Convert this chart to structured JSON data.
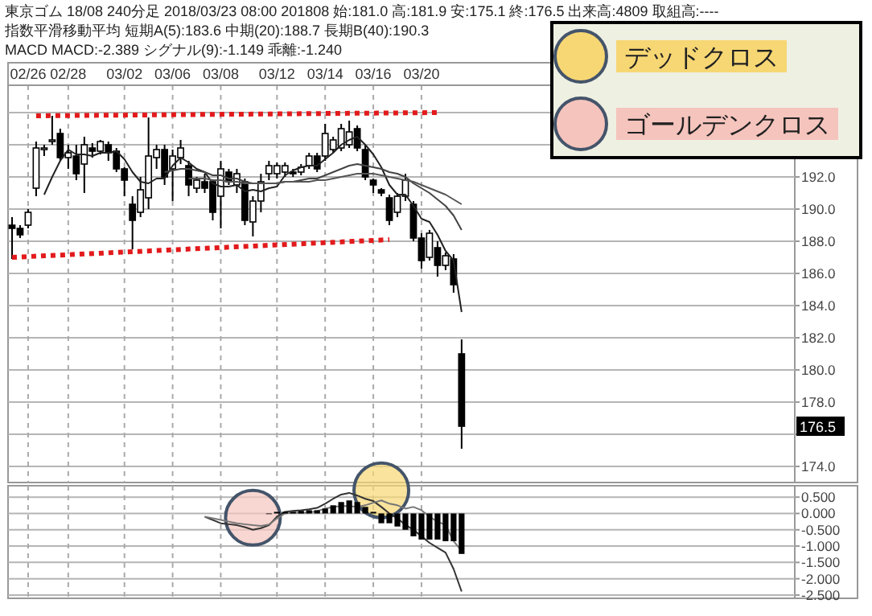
{
  "chart_data": [
    {
      "type": "candlestick",
      "title": "東京ゴム 18/08 240分足 2018/03/23 08:00 201808 始:181.0 高:181.9 安:175.1 終:176.5 出来高:4809 取組高:----",
      "subtitle": "指数平滑移動平均 短期A(5):183.6 中期(20):188.7 長期B(40):190.3",
      "categories": [
        null,
        null,
        "02/26",
        null,
        null,
        null,
        null,
        "02/28",
        null,
        null,
        null,
        null,
        null,
        null,
        "03/02",
        null,
        null,
        null,
        null,
        null,
        "03/06",
        null,
        null,
        null,
        null,
        null,
        "03/08",
        null,
        null,
        null,
        null,
        null,
        null,
        "03/12",
        null,
        null,
        null,
        null,
        null,
        "03/14",
        null,
        null,
        null,
        null,
        null,
        "03/16",
        null,
        null,
        null,
        null,
        null,
        "03/20",
        null,
        null,
        null,
        null,
        null,
        null,
        null,
        null,
        null,
        null,
        null,
        null,
        null,
        null,
        null,
        null,
        null,
        null,
        null,
        null,
        null,
        null,
        null,
        null,
        null,
        null,
        null,
        null,
        null,
        null,
        null,
        null,
        null,
        null,
        null,
        null,
        null,
        null,
        null,
        null,
        null,
        null,
        null,
        null,
        null,
        null
      ],
      "ohlc": [
        [
          189.0,
          189.5,
          186.9,
          188.8
        ],
        [
          188.8,
          189.0,
          188.2,
          188.4
        ],
        [
          189.0,
          190.0,
          188.8,
          189.8
        ],
        [
          191.3,
          194.2,
          190.8,
          193.8
        ],
        [
          193.7,
          194.0,
          193.3,
          193.8
        ],
        [
          194.3,
          195.8,
          194.0,
          194.3
        ],
        [
          194.7,
          195.0,
          193.0,
          193.2
        ],
        [
          193.2,
          194.0,
          192.5,
          193.5
        ],
        [
          193.3,
          194.0,
          191.8,
          192.2
        ],
        [
          192.8,
          194.5,
          191.0,
          194.0
        ],
        [
          193.8,
          194.1,
          193.2,
          193.6
        ],
        [
          193.6,
          194.3,
          193.4,
          194.2
        ],
        [
          194.0,
          194.2,
          193.0,
          193.5
        ],
        [
          193.6,
          193.8,
          192.3,
          192.5
        ],
        [
          192.5,
          192.6,
          190.8,
          191.8
        ],
        [
          190.3,
          190.8,
          187.5,
          189.3
        ],
        [
          189.8,
          192.0,
          189.5,
          191.2
        ],
        [
          190.7,
          195.7,
          190.0,
          193.3
        ],
        [
          193.2,
          194.0,
          192.5,
          193.7
        ],
        [
          193.7,
          194.0,
          191.5,
          192.0
        ],
        [
          192.5,
          193.7,
          190.5,
          193.3
        ],
        [
          193.2,
          194.3,
          192.8,
          193.8
        ],
        [
          192.7,
          193.0,
          190.8,
          191.5
        ],
        [
          191.3,
          192.0,
          191.0,
          191.8
        ],
        [
          191.7,
          192.2,
          191.0,
          191.3
        ],
        [
          191.7,
          191.8,
          189.3,
          189.8
        ],
        [
          190.8,
          193.0,
          188.8,
          192.5
        ],
        [
          192.3,
          192.5,
          191.5,
          191.7
        ],
        [
          191.5,
          192.5,
          191.0,
          192.2
        ],
        [
          191.7,
          191.9,
          189.0,
          189.3
        ],
        [
          189.2,
          190.8,
          188.3,
          190.5
        ],
        [
          190.5,
          192.2,
          189.8,
          191.7
        ],
        [
          192.2,
          193.0,
          191.8,
          192.7
        ],
        [
          192.2,
          192.9,
          191.9,
          192.7
        ],
        [
          192.3,
          192.9,
          192.0,
          192.7
        ],
        [
          192.3,
          192.5,
          192.0,
          192.2
        ],
        [
          192.3,
          192.8,
          192.1,
          192.6
        ],
        [
          192.7,
          193.5,
          192.5,
          193.3
        ],
        [
          193.3,
          193.5,
          192.3,
          192.5
        ],
        [
          193.3,
          195.3,
          193.0,
          194.7
        ],
        [
          193.7,
          194.5,
          193.5,
          194.3
        ],
        [
          193.8,
          195.3,
          193.6,
          195.0
        ],
        [
          194.0,
          195.5,
          193.8,
          194.8
        ],
        [
          195.0,
          195.2,
          193.6,
          193.8
        ],
        [
          193.7,
          194.0,
          191.8,
          192.0
        ],
        [
          191.8,
          191.9,
          191.0,
          191.5
        ],
        [
          191.2,
          191.3,
          190.8,
          191.0
        ],
        [
          190.7,
          190.9,
          189.0,
          189.3
        ],
        [
          189.8,
          191.0,
          189.5,
          190.8
        ],
        [
          190.8,
          192.2,
          190.5,
          191.8
        ],
        [
          190.3,
          190.5,
          188.0,
          188.2
        ],
        [
          188.2,
          188.5,
          186.3,
          186.8
        ],
        [
          187.0,
          188.7,
          186.8,
          188.5
        ],
        [
          187.6,
          188.0,
          185.8,
          186.5
        ],
        [
          186.5,
          187.3,
          186.2,
          187.1
        ],
        [
          186.9,
          187.2,
          184.8,
          185.3
        ],
        [
          181.0,
          181.9,
          175.1,
          176.5
        ],
        null,
        null,
        null,
        null,
        null,
        null,
        null,
        null,
        null,
        null,
        null,
        null,
        null,
        null,
        null,
        null,
        null,
        null,
        null,
        null,
        null,
        null,
        null,
        null,
        null,
        null,
        null,
        null,
        null,
        null,
        null,
        null,
        null,
        null,
        null,
        null,
        null,
        null,
        null,
        null,
        null
      ],
      "series": [
        {
          "type": "line",
          "color": "#222222",
          "values": [
            null,
            null,
            null,
            null,
            190.9,
            192.0,
            193.0,
            193.7,
            193.4,
            193.4,
            193.3,
            193.5,
            193.5,
            193.6,
            193.1,
            192.3,
            191.7,
            191.6,
            191.9,
            191.9,
            192.7,
            193.2,
            192.9,
            192.5,
            192.3,
            191.6,
            191.4,
            191.4,
            191.5,
            191.1,
            191.2,
            191.1,
            191.3,
            191.4,
            192.1,
            192.4,
            192.6,
            192.7,
            192.7,
            193.1,
            193.5,
            194.0,
            194.3,
            194.5,
            194.0,
            193.4,
            192.6,
            191.5,
            190.9,
            190.9,
            190.2,
            189.4,
            189.2,
            188.4,
            187.4,
            186.8,
            183.6,
            null,
            null,
            null,
            null,
            null,
            null,
            null,
            null,
            null,
            null,
            null,
            null,
            null,
            null,
            null,
            null,
            null,
            null,
            null,
            null,
            null,
            null,
            null,
            null,
            null,
            null,
            null,
            null,
            null,
            null,
            null,
            null,
            null,
            null,
            null,
            null,
            null,
            null,
            null,
            null,
            null
          ]
        },
        {
          "type": "line",
          "color": "#444444",
          "values": [
            null,
            null,
            null,
            null,
            null,
            null,
            null,
            null,
            null,
            null,
            null,
            null,
            null,
            null,
            null,
            null,
            null,
            null,
            null,
            192.3,
            192.4,
            192.5,
            192.5,
            192.4,
            192.3,
            192.1,
            192.1,
            191.9,
            191.9,
            191.7,
            191.6,
            191.6,
            191.6,
            191.6,
            191.7,
            191.7,
            191.8,
            191.9,
            191.9,
            192.1,
            192.3,
            192.5,
            192.7,
            192.8,
            192.7,
            192.6,
            192.5,
            192.3,
            192.2,
            192.0,
            191.6,
            191.3,
            191.0,
            190.6,
            190.2,
            189.6,
            188.7,
            null,
            null,
            null,
            null,
            null,
            null,
            null,
            null,
            null,
            null,
            null,
            null,
            null,
            null,
            null,
            null,
            null,
            null,
            null,
            null,
            null,
            null,
            null,
            null,
            null,
            null,
            null,
            null,
            null,
            null,
            null,
            null,
            null,
            null,
            null,
            null,
            null,
            null,
            null,
            null,
            null
          ]
        },
        {
          "type": "line",
          "color": "#555555",
          "values": [
            null,
            null,
            null,
            null,
            null,
            null,
            null,
            null,
            null,
            null,
            null,
            null,
            null,
            null,
            null,
            null,
            null,
            null,
            null,
            null,
            null,
            null,
            191.9,
            191.9,
            191.9,
            191.8,
            191.8,
            191.7,
            191.7,
            191.6,
            191.6,
            191.6,
            191.6,
            191.6,
            191.7,
            191.7,
            191.7,
            191.7,
            191.8,
            191.8,
            191.9,
            192.0,
            192.1,
            192.2,
            192.2,
            192.2,
            192.1,
            192.0,
            191.9,
            191.8,
            191.7,
            191.5,
            191.3,
            191.1,
            190.9,
            190.6,
            190.3,
            null,
            null,
            null,
            null,
            null,
            null,
            null,
            null,
            null,
            null,
            null,
            null,
            null,
            null,
            null,
            null,
            null,
            null,
            null,
            null,
            null,
            null,
            null,
            null,
            null,
            null,
            null,
            null,
            null,
            null,
            null,
            null,
            null,
            null,
            null,
            null,
            null,
            null,
            null,
            null,
            null
          ]
        },
        {
          "type": "line",
          "color": "#e31a1c",
          "line_style": "dotted",
          "values": [
            null,
            null,
            null,
            195.8,
            null,
            null,
            null,
            null,
            null,
            null,
            null,
            null,
            null,
            null,
            null,
            null,
            null,
            null,
            null,
            null,
            null,
            null,
            null,
            null,
            null,
            null,
            null,
            null,
            null,
            null,
            null,
            null,
            null,
            null,
            null,
            null,
            null,
            null,
            null,
            null,
            null,
            null,
            null,
            null,
            null,
            null,
            null,
            null,
            null,
            null,
            null,
            null,
            null,
            196.0,
            null,
            null,
            null,
            null,
            null,
            null,
            null,
            null,
            null,
            null,
            null,
            null,
            null,
            null,
            null,
            null,
            null,
            null,
            null,
            null,
            null,
            null,
            null,
            null,
            null,
            null,
            null,
            null,
            null,
            null,
            null,
            null,
            null,
            null,
            null,
            null,
            null,
            null,
            null,
            null,
            null,
            null,
            null,
            null
          ]
        },
        {
          "type": "line",
          "color": "#e31a1c",
          "line_style": "dotted",
          "values": [
            187.0,
            null,
            null,
            null,
            null,
            null,
            null,
            null,
            null,
            null,
            null,
            null,
            null,
            null,
            null,
            null,
            null,
            null,
            null,
            null,
            null,
            null,
            null,
            null,
            null,
            null,
            null,
            null,
            null,
            null,
            null,
            null,
            null,
            null,
            null,
            null,
            null,
            null,
            null,
            null,
            null,
            null,
            null,
            null,
            null,
            null,
            null,
            188.1,
            null,
            null,
            null,
            null,
            null,
            null,
            null,
            null,
            null,
            null,
            null,
            null,
            null,
            null,
            null,
            null,
            null,
            null,
            null,
            null,
            null,
            null,
            null,
            null,
            null,
            null,
            null,
            null,
            null,
            null,
            null,
            null,
            null,
            null,
            null,
            null,
            null,
            null,
            null,
            null,
            null,
            null,
            null,
            null,
            null,
            null,
            null,
            null,
            null,
            null
          ]
        }
      ],
      "ylim": [
        173.0,
        197.7
      ],
      "yticks": [
        {
          "value": 174,
          "label": "174.0"
        },
        {
          "value": 176,
          "label": null
        },
        {
          "value": 178,
          "label": "178.0"
        },
        {
          "value": 180,
          "label": "180.0"
        },
        {
          "value": 182,
          "label": "182.0"
        },
        {
          "value": 184,
          "label": "184.0"
        },
        {
          "value": 186,
          "label": "186.0"
        },
        {
          "value": 188,
          "label": "188.0"
        },
        {
          "value": 190,
          "label": "190.0"
        },
        {
          "value": 192,
          "label": "192.0"
        },
        {
          "value": 194,
          "label": null
        },
        {
          "value": 196,
          "label": null
        }
      ],
      "annotations": [
        "MACD MACD:-2.389 シグナル(9):-1.149 乖離:-1.240",
        {
          "text": "176.5",
          "y": 176.5
        }
      ],
      "grid": true
    },
    {
      "type": "bar",
      "categories": [
        null,
        null,
        null,
        null,
        null,
        null,
        null,
        null,
        null,
        null,
        null,
        null,
        null,
        null,
        null,
        null,
        null,
        null,
        null,
        null,
        null,
        null,
        null,
        null,
        null,
        null,
        null,
        null,
        null,
        null,
        null,
        null,
        null,
        null,
        null,
        null,
        null,
        null,
        null,
        null,
        null,
        null,
        null,
        null,
        null,
        null,
        null,
        null,
        null,
        null,
        null,
        null,
        null,
        null,
        null,
        null,
        null,
        null,
        null,
        null,
        null,
        null,
        null,
        null,
        null,
        null,
        null,
        null,
        null,
        null,
        null,
        null,
        null,
        null,
        null,
        null,
        null,
        null,
        null,
        null,
        null,
        null,
        null,
        null,
        null,
        null,
        null,
        null,
        null,
        null,
        null,
        null,
        null,
        null,
        null,
        null,
        null,
        null
      ],
      "series": [
        {
          "type": "bar",
          "color": "#000000",
          "values": [
            null,
            null,
            null,
            null,
            null,
            null,
            null,
            null,
            null,
            null,
            null,
            null,
            null,
            null,
            null,
            null,
            null,
            null,
            null,
            null,
            null,
            null,
            null,
            null,
            null,
            null,
            null,
            null,
            null,
            null,
            null,
            null,
            -0.02,
            0.05,
            0.05,
            0.05,
            0.08,
            0.1,
            0.1,
            0.15,
            0.25,
            0.35,
            0.4,
            0.35,
            0.2,
            0.05,
            -0.3,
            -0.3,
            -0.4,
            -0.5,
            -0.7,
            -0.8,
            -0.8,
            -0.8,
            -0.85,
            -0.85,
            -1.24,
            null,
            null,
            null,
            null,
            null,
            null,
            null,
            null,
            null,
            null,
            null,
            null,
            null,
            null,
            null,
            null,
            null,
            null,
            null,
            null,
            null,
            null,
            null,
            null,
            null,
            null,
            null,
            null,
            null,
            null,
            null,
            null,
            null,
            null,
            null,
            null,
            null,
            null,
            null,
            null,
            null
          ]
        },
        {
          "type": "line",
          "color": "#333333",
          "values": [
            null,
            null,
            null,
            null,
            null,
            null,
            null,
            null,
            null,
            null,
            null,
            null,
            null,
            null,
            null,
            null,
            null,
            null,
            null,
            null,
            null,
            null,
            null,
            null,
            -0.1,
            -0.2,
            -0.3,
            -0.33,
            -0.36,
            -0.42,
            -0.5,
            -0.45,
            -0.36,
            -0.1,
            0.05,
            0.08,
            0.1,
            0.13,
            0.17,
            0.3,
            0.45,
            0.58,
            0.63,
            0.55,
            0.45,
            0.38,
            0.2,
            0.0,
            -0.15,
            -0.35,
            -0.5,
            -0.7,
            -0.9,
            -1.05,
            -1.2,
            -1.7,
            -2.39,
            null,
            null,
            null,
            null,
            null,
            null,
            null,
            null,
            null,
            null,
            null,
            null,
            null,
            null,
            null,
            null,
            null,
            null,
            null,
            null,
            null,
            null,
            null,
            null,
            null,
            null,
            null,
            null,
            null,
            null,
            null,
            null,
            null,
            null,
            null,
            null,
            null,
            null,
            null,
            null,
            null
          ]
        },
        {
          "type": "line",
          "color": "#777777",
          "values": [
            null,
            null,
            null,
            null,
            null,
            null,
            null,
            null,
            null,
            null,
            null,
            null,
            null,
            null,
            null,
            null,
            null,
            null,
            null,
            null,
            null,
            null,
            null,
            null,
            -0.1,
            -0.15,
            -0.2,
            -0.25,
            -0.3,
            -0.33,
            -0.36,
            -0.38,
            -0.34,
            -0.15,
            0.0,
            0.03,
            0.02,
            0.03,
            0.07,
            0.15,
            0.2,
            0.23,
            0.23,
            0.2,
            0.25,
            0.33,
            0.4,
            0.3,
            0.25,
            0.15,
            0.2,
            0.1,
            -0.1,
            -0.25,
            -0.35,
            -0.85,
            -1.15,
            null,
            null,
            null,
            null,
            null,
            null,
            null,
            null,
            null,
            null,
            null,
            null,
            null,
            null,
            null,
            null,
            null,
            null,
            null,
            null,
            null,
            null,
            null,
            null,
            null,
            null,
            null,
            null,
            null,
            null,
            null,
            null,
            null,
            null,
            null,
            null,
            null,
            null,
            null,
            null,
            null
          ]
        },
        {
          "type": "scatter",
          "name": "デッドクロス",
          "color": "#f7d774",
          "values": [
            null,
            null,
            null,
            null,
            null,
            null,
            null,
            null,
            null,
            null,
            null,
            null,
            null,
            null,
            null,
            null,
            null,
            null,
            null,
            null,
            null,
            null,
            null,
            null,
            null,
            null,
            null,
            null,
            null,
            null,
            null,
            null,
            null,
            null,
            null,
            null,
            null,
            null,
            null,
            null,
            null,
            null,
            null,
            null,
            null,
            null,
            0.71,
            null,
            null,
            null,
            null,
            null,
            null,
            null,
            null,
            null,
            null,
            null,
            null,
            null,
            null,
            null,
            null,
            null,
            null,
            null,
            null,
            null,
            null,
            null,
            null,
            null,
            null,
            null,
            null,
            null,
            null,
            null,
            null,
            null,
            null,
            null,
            null,
            null,
            null,
            null,
            null,
            null,
            null,
            null,
            null,
            null,
            null,
            null,
            null,
            null,
            null,
            null
          ]
        },
        {
          "type": "scatter",
          "name": "ゴールデンクロス",
          "color": "#f5c4bd",
          "values": [
            null,
            null,
            null,
            null,
            null,
            null,
            null,
            null,
            null,
            null,
            null,
            null,
            null,
            null,
            null,
            null,
            null,
            null,
            null,
            null,
            null,
            null,
            null,
            null,
            null,
            null,
            null,
            null,
            null,
            null,
            -0.13,
            null,
            null,
            null,
            null,
            null,
            null,
            null,
            null,
            null,
            null,
            null,
            null,
            null,
            null,
            null,
            null,
            null,
            null,
            null,
            null,
            null,
            null,
            null,
            null,
            null,
            null,
            null,
            null,
            null,
            null,
            null,
            null,
            null,
            null,
            null,
            null,
            null,
            null,
            null,
            null,
            null,
            null,
            null,
            null,
            null,
            null,
            null,
            null,
            null,
            null,
            null,
            null,
            null,
            null,
            null,
            null,
            null,
            null,
            null,
            null,
            null,
            null,
            null,
            null,
            null,
            null,
            null
          ]
        }
      ],
      "ylim": [
        -2.6,
        0.85
      ],
      "yticks": [
        {
          "value": 0.5,
          "label": "0.500"
        },
        {
          "value": 0,
          "label": "0.000"
        },
        {
          "value": -0.5,
          "label": "-0.500"
        },
        {
          "value": -1,
          "label": "-1.000"
        },
        {
          "value": -1.5,
          "label": "-1.500"
        },
        {
          "value": -2,
          "label": "-2.000"
        },
        {
          "value": -2.5,
          "label": "-2.500"
        }
      ],
      "tick_labels": "y",
      "legend": "top right",
      "grid": true
    }
  ]
}
